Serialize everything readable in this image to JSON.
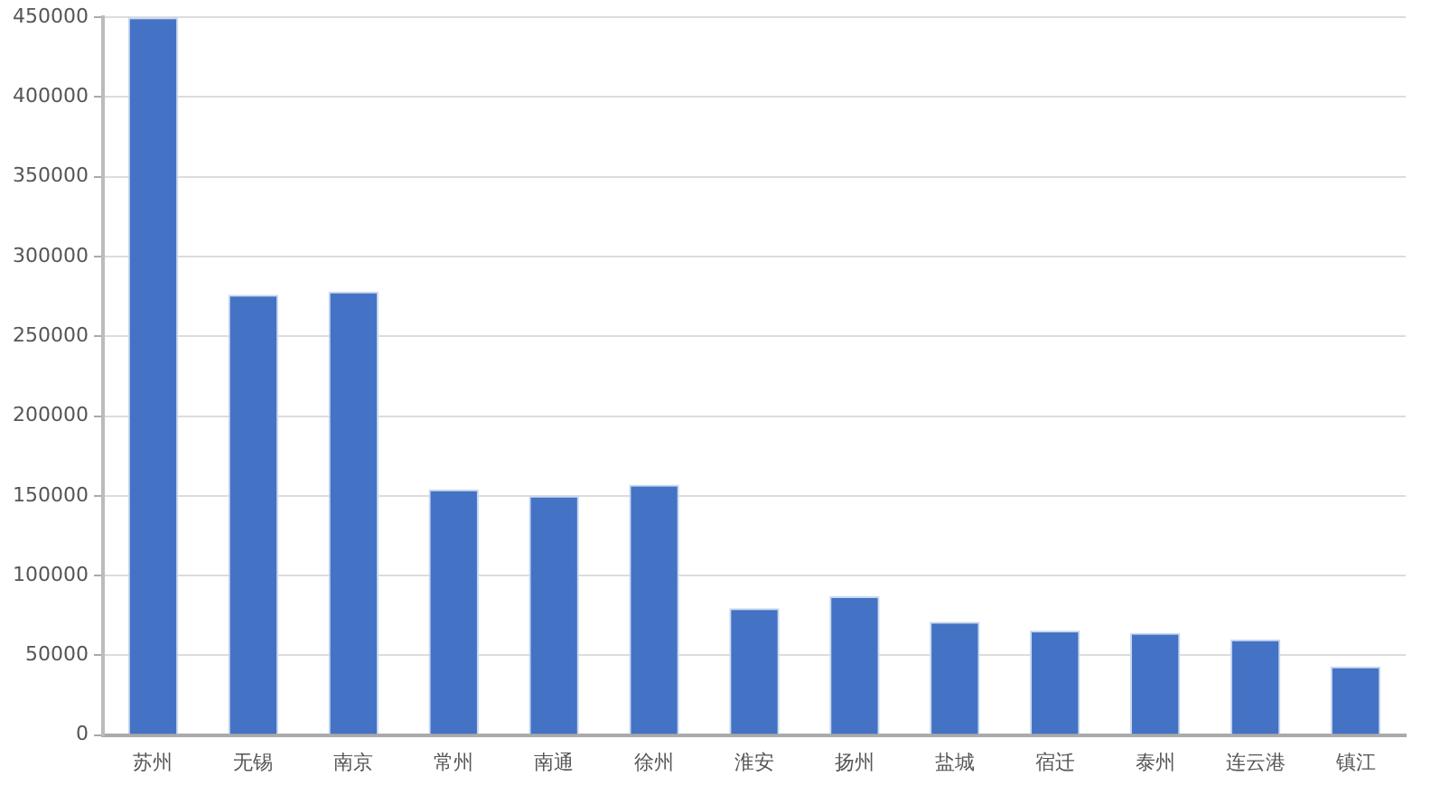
{
  "chart_data": {
    "type": "bar",
    "categories": [
      "苏州",
      "无锡",
      "南京",
      "常州",
      "南通",
      "徐州",
      "淮安",
      "扬州",
      "盐城",
      "宿迁",
      "泰州",
      "连云港",
      "镇江"
    ],
    "values": [
      450000,
      276000,
      278000,
      154000,
      150000,
      157000,
      79500,
      87000,
      71000,
      65500,
      64000,
      60000,
      43000
    ],
    "color": "#4472c4",
    "ylim": [
      0,
      450000
    ],
    "yticks": [
      0,
      50000,
      100000,
      150000,
      200000,
      250000,
      300000,
      350000,
      400000,
      450000
    ],
    "grid": "y"
  }
}
